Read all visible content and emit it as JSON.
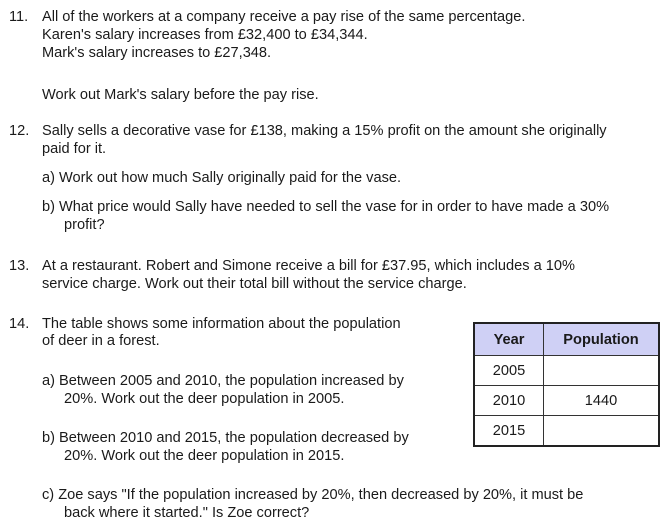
{
  "questions": [
    {
      "number": "11.",
      "lines": [
        "All of the workers at a company receive a pay rise of the same percentage.",
        "Karen's salary increases from £32,400 to £34,344.",
        "Mark's salary increases to £27,348.",
        "Work out Mark's salary before the pay rise."
      ]
    },
    {
      "number": "12.",
      "lines": [
        "Sally sells a decorative vase for £138, making a 15% profit on the amount she originally",
        "paid for it.",
        "a)  Work out how much Sally originally paid for the vase.",
        "b)  What price would Sally have needed to sell the vase for in order to have made a 30%",
        "profit?"
      ]
    },
    {
      "number": "13.",
      "lines": [
        "At a restaurant. Robert and Simone receive a bill for £37.95, which includes a 10%",
        "service charge. Work out their total bill without the service charge."
      ]
    },
    {
      "number": "14.",
      "lines": [
        "The table shows some information about the population",
        "of deer in a forest.",
        "a)  Between 2005 and 2010, the population increased by",
        "20%. Work out the deer population in 2005.",
        "b)  Between 2010 and 2015, the population decreased by",
        "20%. Work out the deer population in 2015.",
        "c)  Zoe says \"If the population increased by 20%, then decreased by 20%, it must be",
        "back where it started.\" Is Zoe correct?"
      ]
    }
  ],
  "table": {
    "headers": [
      "Year",
      "Population"
    ],
    "rows": [
      [
        "2005",
        ""
      ],
      [
        "2010",
        "1440"
      ],
      [
        "2015",
        ""
      ]
    ]
  }
}
